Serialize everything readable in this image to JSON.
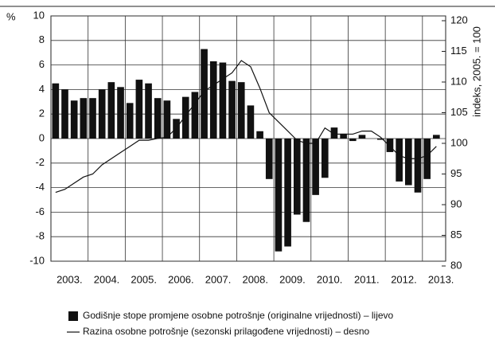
{
  "chart_data": {
    "type": "bar_line",
    "left_unit": "%",
    "y2_label": "indeks, 2005. = 100",
    "categories": [
      "2003.",
      null,
      null,
      null,
      "2004.",
      null,
      null,
      null,
      "2005.",
      null,
      null,
      null,
      "2006.",
      null,
      null,
      null,
      "2007.",
      null,
      null,
      null,
      "2008.",
      null,
      null,
      null,
      "2009.",
      null,
      null,
      null,
      "2010.",
      null,
      null,
      null,
      "2011.",
      null,
      null,
      null,
      "2012.",
      null,
      null,
      null,
      "2013.",
      null
    ],
    "series": [
      {
        "name": "Godišnje stope promjene osobne potrošnje (originalne vrijednosti) – lijevo",
        "color": "#111111",
        "type": "bar",
        "axis": "y",
        "values": [
          4.5,
          4.0,
          3.1,
          3.3,
          3.3,
          4.0,
          4.6,
          4.2,
          2.9,
          4.8,
          4.5,
          3.3,
          3.1,
          1.6,
          3.4,
          3.8,
          7.3,
          6.3,
          6.2,
          4.7,
          4.6,
          2.7,
          0.6,
          -3.3,
          -9.2,
          -8.8,
          -6.2,
          -6.8,
          -4.6,
          -3.2,
          0.9,
          0.4,
          -0.2,
          0.3,
          0.0,
          -0.1,
          -1.1,
          -3.5,
          -3.8,
          -4.4,
          -3.3,
          0.3
        ]
      },
      {
        "name": "Razina osobne potrošnje (sezonski prilagođene vrijednosti) – desno",
        "color": "#111111",
        "type": "line",
        "axis": "y2",
        "values": [
          92,
          92.5,
          93.5,
          94.5,
          95,
          96.5,
          97.5,
          98.5,
          99.5,
          100.5,
          100.5,
          100.8,
          101,
          102.5,
          104.5,
          106.5,
          108.5,
          109.5,
          110.5,
          111.5,
          113.5,
          112.5,
          109,
          105,
          103.5,
          102,
          100.5,
          100,
          100,
          102.5,
          101.5,
          101.5,
          101.5,
          102,
          102,
          101,
          99.5,
          98,
          97.5,
          97.5,
          98,
          99.5
        ]
      }
    ],
    "ylim": [
      -10,
      10
    ],
    "yticks": [
      -10,
      -8,
      -6,
      -4,
      -2,
      0,
      2,
      4,
      6,
      8,
      10
    ],
    "y2lim": [
      80,
      120
    ],
    "y2ticks": [
      80,
      85,
      90,
      95,
      100,
      105,
      110,
      115,
      120
    ],
    "grid": true
  }
}
